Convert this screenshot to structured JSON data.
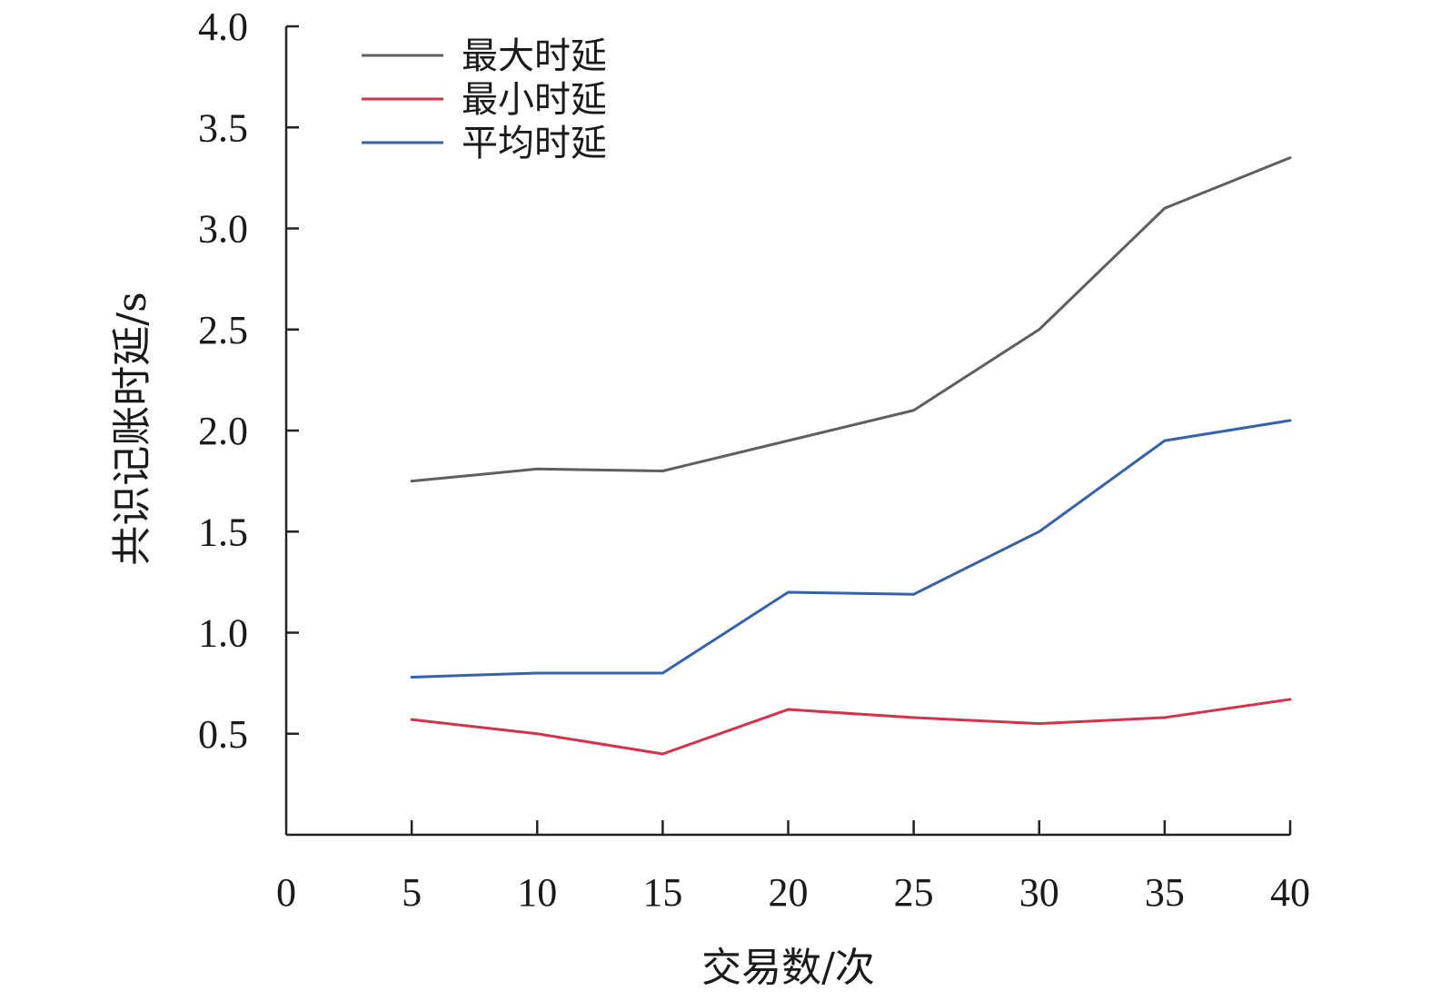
{
  "chart_data": {
    "type": "line",
    "x": [
      5,
      10,
      15,
      20,
      25,
      30,
      35,
      40
    ],
    "series": [
      {
        "name": "最大时延",
        "color": "#5f5f5f",
        "values": [
          1.75,
          1.81,
          1.8,
          1.95,
          2.1,
          2.5,
          3.1,
          3.35
        ]
      },
      {
        "name": "最小时延",
        "color": "#d6314b",
        "values": [
          0.57,
          0.5,
          0.4,
          0.62,
          0.58,
          0.55,
          0.58,
          0.67
        ]
      },
      {
        "name": "平均时延",
        "color": "#3561ad",
        "values": [
          0.78,
          0.8,
          0.8,
          1.2,
          1.19,
          1.5,
          1.95,
          2.05
        ]
      }
    ],
    "xlabel": "交易数/次",
    "ylabel": "共识记账时延/s",
    "xlim": [
      0,
      40
    ],
    "ylim": [
      0,
      4.0
    ],
    "xticks": [
      "0",
      "5",
      "10",
      "15",
      "20",
      "25",
      "30",
      "35",
      "40"
    ],
    "yticks": [
      "0.5",
      "1.0",
      "1.5",
      "2.0",
      "2.5",
      "3.0",
      "3.5",
      "4.0"
    ],
    "grid": false,
    "legend_position": "top-left"
  }
}
